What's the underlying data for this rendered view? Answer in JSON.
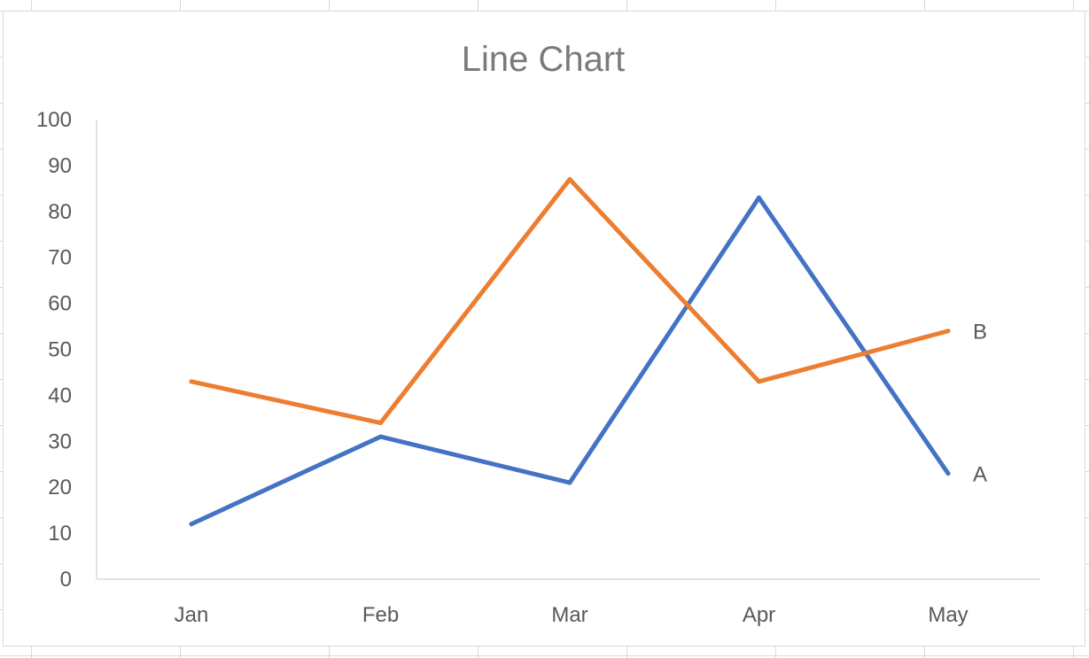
{
  "chart_data": {
    "type": "line",
    "title": "Line Chart",
    "xlabel": "",
    "ylabel": "",
    "categories": [
      "Jan",
      "Feb",
      "Mar",
      "Apr",
      "May"
    ],
    "ylim": [
      0,
      100
    ],
    "yticks": [
      0,
      10,
      20,
      30,
      40,
      50,
      60,
      70,
      80,
      90,
      100
    ],
    "grid": false,
    "legend": "none (series labels at line ends)",
    "series": [
      {
        "name": "A",
        "color": "#4472C4",
        "values": [
          12,
          31,
          21,
          83,
          23
        ]
      },
      {
        "name": "B",
        "color": "#ED7D31",
        "values": [
          43,
          34,
          87,
          43,
          54
        ]
      }
    ]
  }
}
